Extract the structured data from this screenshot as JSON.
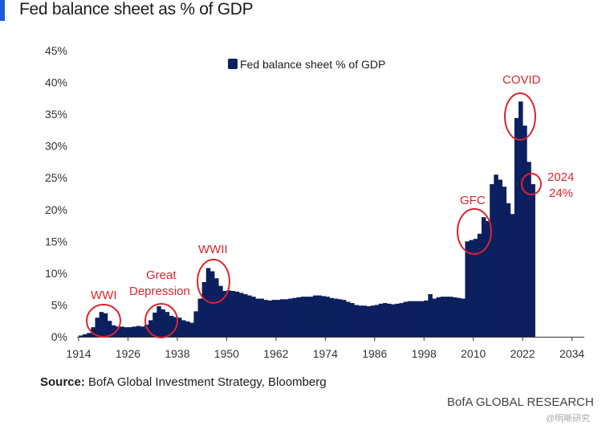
{
  "header": {
    "title": "Fed balance sheet as % of GDP"
  },
  "footer": {
    "source_label": "Source:",
    "source_text": " BofA Global Investment Strategy, Bloomberg",
    "brand": "BofA GLOBAL RESEARCH",
    "watermark": "@明晰研究"
  },
  "colors": {
    "bar": "#0c1f5e",
    "annotation": "#d7262e",
    "axis": "#333333"
  },
  "chart_data": {
    "type": "bar",
    "title": "Fed balance sheet as % of GDP",
    "legend": "Fed balance sheet % of GDP",
    "legend_position": "top-center",
    "xlabel": "",
    "ylabel": "",
    "xlim": [
      1914,
      2037
    ],
    "ylim": [
      0,
      45
    ],
    "x_ticks": [
      1914,
      1926,
      1938,
      1950,
      1962,
      1974,
      1986,
      1998,
      2010,
      2022,
      2034
    ],
    "y_ticks": [
      0,
      5,
      10,
      15,
      20,
      25,
      30,
      35,
      40,
      45
    ],
    "y_tick_labels": [
      "0%",
      "5%",
      "10%",
      "15%",
      "20%",
      "25%",
      "30%",
      "35%",
      "40%",
      "45%"
    ],
    "series": [
      {
        "name": "Fed balance sheet % of GDP",
        "points": [
          [
            1914,
            0.2
          ],
          [
            1915,
            0.4
          ],
          [
            1916,
            0.6
          ],
          [
            1917,
            1.5
          ],
          [
            1918,
            3.0
          ],
          [
            1919,
            3.9
          ],
          [
            1920,
            3.7
          ],
          [
            1921,
            2.5
          ],
          [
            1922,
            1.8
          ],
          [
            1923,
            1.6
          ],
          [
            1924,
            1.6
          ],
          [
            1925,
            1.5
          ],
          [
            1926,
            1.5
          ],
          [
            1927,
            1.6
          ],
          [
            1928,
            1.7
          ],
          [
            1929,
            1.6
          ],
          [
            1930,
            1.9
          ],
          [
            1931,
            2.6
          ],
          [
            1932,
            3.8
          ],
          [
            1933,
            4.8
          ],
          [
            1934,
            4.3
          ],
          [
            1935,
            3.9
          ],
          [
            1936,
            3.3
          ],
          [
            1937,
            3.1
          ],
          [
            1938,
            3.0
          ],
          [
            1939,
            2.6
          ],
          [
            1940,
            2.4
          ],
          [
            1941,
            2.2
          ],
          [
            1942,
            4.0
          ],
          [
            1943,
            6.0
          ],
          [
            1944,
            8.6
          ],
          [
            1945,
            10.8
          ],
          [
            1946,
            10.3
          ],
          [
            1947,
            9.2
          ],
          [
            1948,
            8.0
          ],
          [
            1949,
            7.2
          ],
          [
            1950,
            7.3
          ],
          [
            1951,
            7.2
          ],
          [
            1952,
            7.1
          ],
          [
            1953,
            6.9
          ],
          [
            1954,
            6.7
          ],
          [
            1955,
            6.5
          ],
          [
            1956,
            6.3
          ],
          [
            1957,
            6.0
          ],
          [
            1958,
            6.0
          ],
          [
            1959,
            5.8
          ],
          [
            1960,
            5.7
          ],
          [
            1961,
            5.8
          ],
          [
            1962,
            5.8
          ],
          [
            1963,
            5.9
          ],
          [
            1964,
            5.9
          ],
          [
            1965,
            6.0
          ],
          [
            1966,
            6.1
          ],
          [
            1967,
            6.2
          ],
          [
            1968,
            6.3
          ],
          [
            1969,
            6.3
          ],
          [
            1970,
            6.3
          ],
          [
            1971,
            6.5
          ],
          [
            1972,
            6.5
          ],
          [
            1973,
            6.4
          ],
          [
            1974,
            6.3
          ],
          [
            1975,
            6.1
          ],
          [
            1976,
            6.0
          ],
          [
            1977,
            5.9
          ],
          [
            1978,
            5.8
          ],
          [
            1979,
            5.5
          ],
          [
            1980,
            5.3
          ],
          [
            1981,
            5.0
          ],
          [
            1982,
            4.9
          ],
          [
            1983,
            4.9
          ],
          [
            1984,
            4.8
          ],
          [
            1985,
            4.9
          ],
          [
            1986,
            5.0
          ],
          [
            1987,
            5.2
          ],
          [
            1988,
            5.3
          ],
          [
            1989,
            5.2
          ],
          [
            1990,
            5.1
          ],
          [
            1991,
            5.2
          ],
          [
            1992,
            5.3
          ],
          [
            1993,
            5.5
          ],
          [
            1994,
            5.6
          ],
          [
            1995,
            5.6
          ],
          [
            1996,
            5.6
          ],
          [
            1997,
            5.6
          ],
          [
            1998,
            5.7
          ],
          [
            1999,
            6.7
          ],
          [
            2000,
            6.0
          ],
          [
            2001,
            6.2
          ],
          [
            2002,
            6.3
          ],
          [
            2003,
            6.3
          ],
          [
            2004,
            6.3
          ],
          [
            2005,
            6.2
          ],
          [
            2006,
            6.1
          ],
          [
            2007,
            6.0
          ],
          [
            2008,
            15.0
          ],
          [
            2009,
            15.2
          ],
          [
            2010,
            15.4
          ],
          [
            2011,
            16.2
          ],
          [
            2012,
            18.8
          ],
          [
            2013,
            18.2
          ],
          [
            2014,
            24.0
          ],
          [
            2015,
            25.5
          ],
          [
            2016,
            24.7
          ],
          [
            2017,
            23.6
          ],
          [
            2018,
            21.0
          ],
          [
            2019,
            19.3
          ],
          [
            2020,
            34.4
          ],
          [
            2021,
            37.0
          ],
          [
            2022,
            33.2
          ],
          [
            2023,
            27.5
          ],
          [
            2024,
            24.0
          ]
        ]
      }
    ],
    "annotations": [
      {
        "label": "WWI",
        "x": 1919,
        "y": 2.5
      },
      {
        "label": "Great Depression",
        "x": 1934,
        "y": 2.5
      },
      {
        "label": "WWII",
        "x": 1946,
        "y": 9.0
      },
      {
        "label": "GFC",
        "x": 2011,
        "y": 16.5
      },
      {
        "label": "COVID",
        "x": 2021,
        "y": 34.5
      },
      {
        "label": "2024 24%",
        "x": 2024,
        "y": 24.0
      }
    ],
    "annotation_text": {
      "wwi": "WWI",
      "great": "Great",
      "depression": "Depression",
      "wwii": "WWII",
      "gfc": "GFC",
      "covid": "COVID",
      "y2024": "2024",
      "pct2024": "24%"
    }
  }
}
